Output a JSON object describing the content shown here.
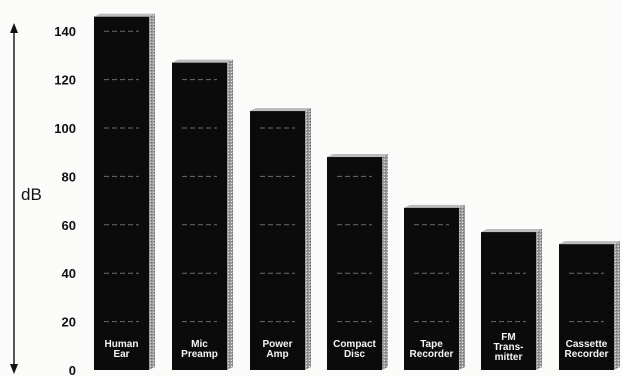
{
  "chart_data": {
    "type": "bar",
    "title": "",
    "xlabel": "",
    "ylabel": "dB",
    "ylim": [
      0,
      150
    ],
    "yticks": [
      0,
      20,
      40,
      60,
      80,
      100,
      120,
      140
    ],
    "grid": "dashed lines on bars",
    "categories": [
      [
        "Human",
        "Ear"
      ],
      [
        "Mic",
        "Preamp"
      ],
      [
        "Power",
        "Amp"
      ],
      [
        "Compact",
        "Disc"
      ],
      [
        "Tape",
        "Recorder"
      ],
      [
        "FM",
        "Trans-",
        "mitter"
      ],
      [
        "Cassette",
        "Recorder"
      ]
    ],
    "values": [
      146,
      127,
      107,
      88,
      67,
      57,
      52
    ],
    "colors": {
      "bar": "#0b0b0b",
      "bar_side": "#8e8e8e",
      "bar_top": "#bcbcbc",
      "text": "#111111",
      "label": "#f5f5f5"
    }
  }
}
